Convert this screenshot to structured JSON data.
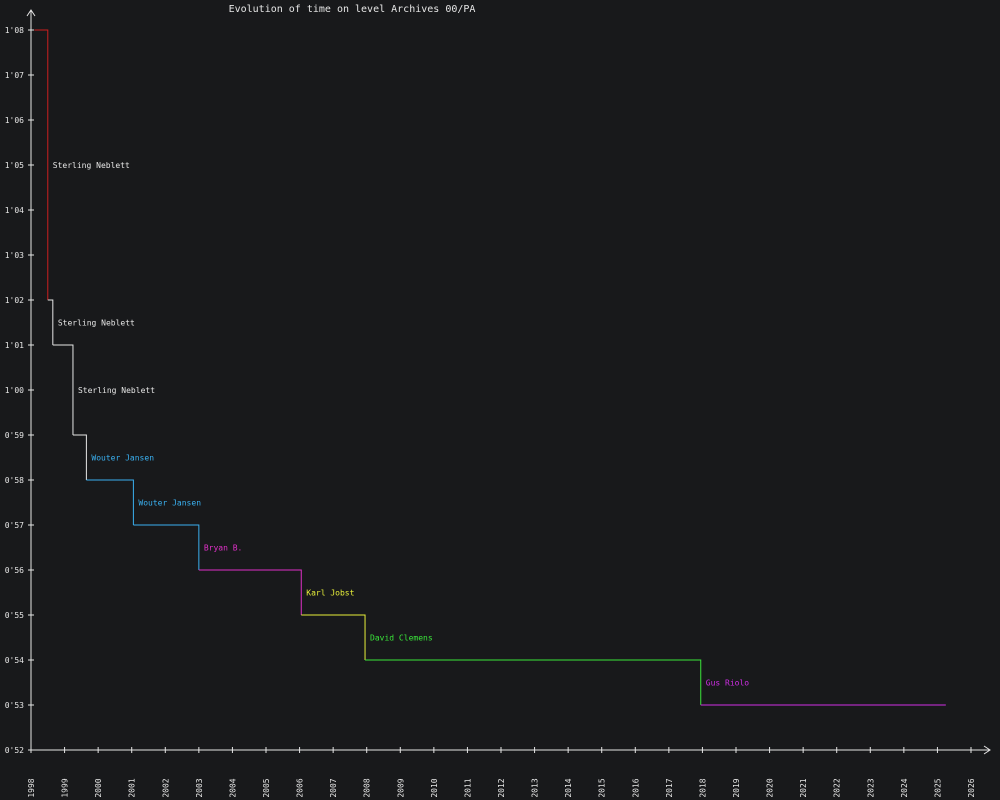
{
  "chart_data": {
    "type": "line",
    "title": "Evolution of time on level Archives 00/PA",
    "xlabel": "",
    "ylabel": "",
    "x_tick_labels": [
      "1998",
      "1999",
      "2000",
      "2001",
      "2002",
      "2003",
      "2004",
      "2005",
      "2006",
      "2007",
      "2008",
      "2009",
      "2010",
      "2011",
      "2012",
      "2013",
      "2014",
      "2015",
      "2016",
      "2017",
      "2018",
      "2019",
      "2020",
      "2021",
      "2022",
      "2023",
      "2024",
      "2025",
      "2026"
    ],
    "y_tick_labels": [
      "0'52",
      "0'53",
      "0'54",
      "0'55",
      "0'56",
      "0'57",
      "0'58",
      "0'59",
      "1'00",
      "1'01",
      "1'02",
      "1'03",
      "1'04",
      "1'05",
      "1'06",
      "1'07",
      "1'08"
    ],
    "xlim": [
      1998.0,
      2026.0
    ],
    "ylim_seconds": [
      52,
      68
    ],
    "grid": false,
    "steps": [
      {
        "start": 1998.1,
        "end": 1998.5,
        "time": "1'08",
        "seconds": 68,
        "player": "",
        "color": "#cc1f1f"
      },
      {
        "start": 1998.5,
        "end": 1998.65,
        "time": "1'02",
        "seconds": 62,
        "player": "Sterling Neblett",
        "color": "#e6e6e6"
      },
      {
        "start": 1998.65,
        "end": 1999.25,
        "time": "1'01",
        "seconds": 61,
        "player": "Sterling Neblett",
        "color": "#e6e6e6"
      },
      {
        "start": 1999.25,
        "end": 1999.65,
        "time": "0'59",
        "seconds": 59,
        "player": "Sterling Neblett",
        "color": "#e6e6e6"
      },
      {
        "start": 1999.65,
        "end": 2001.05,
        "time": "0'58",
        "seconds": 58,
        "player": "Wouter Jansen",
        "color": "#3ab0f0"
      },
      {
        "start": 2001.05,
        "end": 2003.0,
        "time": "0'57",
        "seconds": 57,
        "player": "Wouter Jansen",
        "color": "#3ab0f0"
      },
      {
        "start": 2003.0,
        "end": 2006.05,
        "time": "0'56",
        "seconds": 56,
        "player": "Bryan B.",
        "color": "#e030c8"
      },
      {
        "start": 2006.05,
        "end": 2007.95,
        "time": "0'55",
        "seconds": 55,
        "player": "Karl Jobst",
        "color": "#e8f03a"
      },
      {
        "start": 2007.95,
        "end": 2017.95,
        "time": "0'54",
        "seconds": 54,
        "player": "David Clemens",
        "color": "#3ae63a"
      },
      {
        "start": 2017.95,
        "end": 2025.25,
        "time": "0'53",
        "seconds": 53,
        "player": "Gus Riolo",
        "color": "#d02ee6"
      }
    ]
  }
}
